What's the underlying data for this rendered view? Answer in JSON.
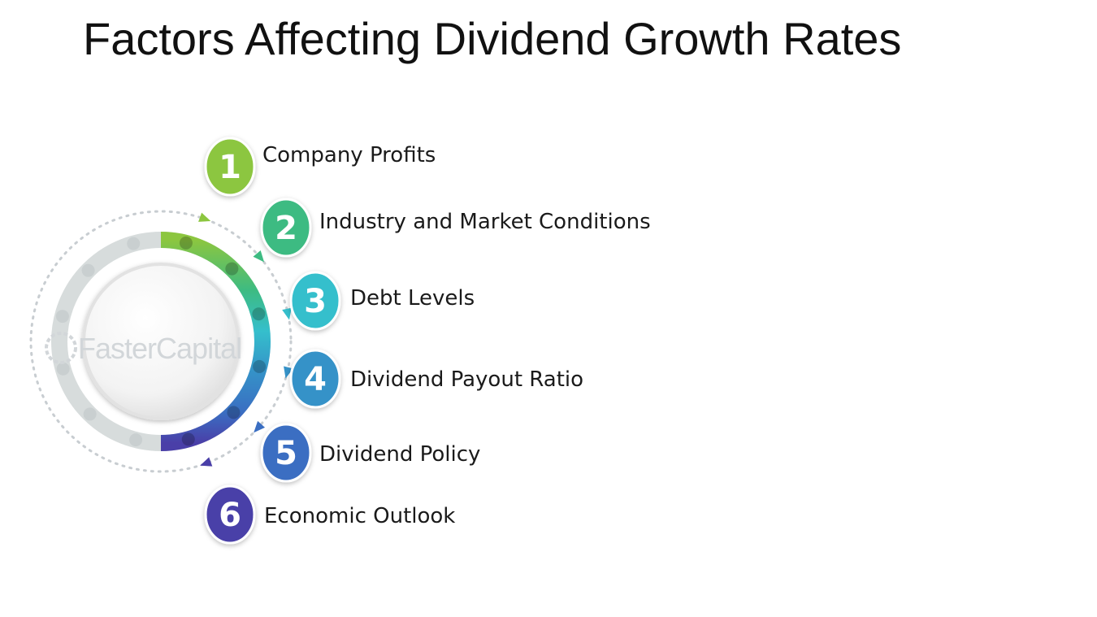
{
  "title": "Factors Affecting Dividend Growth Rates",
  "watermark": "FasterCapital",
  "factors": [
    {
      "number": "1",
      "label": "Company Profits",
      "color": "#8cc63f"
    },
    {
      "number": "2",
      "label": "Industry and Market Conditions",
      "color": "#3dbb82"
    },
    {
      "number": "3",
      "label": "Debt Levels",
      "color": "#35bfcc"
    },
    {
      "number": "4",
      "label": "Dividend Payout Ratio",
      "color": "#3592c8"
    },
    {
      "number": "5",
      "label": "Dividend Policy",
      "color": "#3a6ec2"
    },
    {
      "number": "6",
      "label": "Economic Outlook",
      "color": "#4a3fa8"
    }
  ]
}
